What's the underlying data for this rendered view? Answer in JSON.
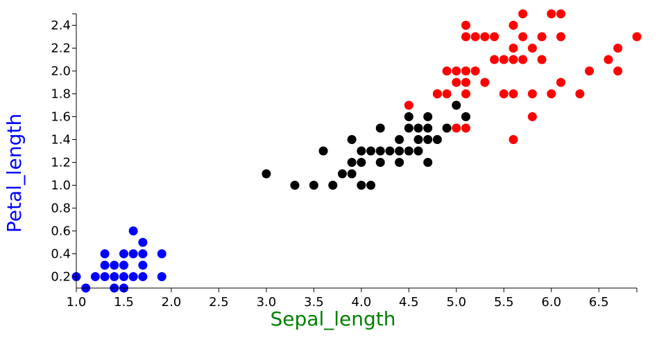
{
  "colors": {
    "setosa": "#0000ff",
    "versicolor": "#000000",
    "virginica": "#ff0000",
    "xlabel": "#008000",
    "ylabel": "#0000ff",
    "axis": "#000000"
  },
  "chart_data": {
    "type": "scatter",
    "title": "",
    "xlabel": "Sepal_length",
    "ylabel": "Petal_length",
    "xlim": [
      1.0,
      6.9
    ],
    "ylim": [
      0.1,
      2.5
    ],
    "grid": false,
    "legend": "none",
    "x_ticks": [
      "1.0",
      "1.5",
      "2.0",
      "2.5",
      "3.0",
      "3.5",
      "4.0",
      "4.5",
      "5.0",
      "5.5",
      "6.0",
      "6.5"
    ],
    "y_ticks": [
      "0.2",
      "0.4",
      "0.6",
      "0.8",
      "1.0",
      "1.2",
      "1.4",
      "1.6",
      "1.8",
      "2.0",
      "2.2",
      "2.4"
    ],
    "series": [
      {
        "color_key": "setosa",
        "points": [
          [
            1.0,
            0.2
          ],
          [
            1.1,
            0.1
          ],
          [
            1.2,
            0.2
          ],
          [
            1.3,
            0.2
          ],
          [
            1.3,
            0.3
          ],
          [
            1.3,
            0.4
          ],
          [
            1.4,
            0.1
          ],
          [
            1.4,
            0.2
          ],
          [
            1.4,
            0.3
          ],
          [
            1.5,
            0.1
          ],
          [
            1.5,
            0.2
          ],
          [
            1.5,
            0.3
          ],
          [
            1.5,
            0.4
          ],
          [
            1.6,
            0.2
          ],
          [
            1.6,
            0.4
          ],
          [
            1.6,
            0.6
          ],
          [
            1.7,
            0.2
          ],
          [
            1.7,
            0.3
          ],
          [
            1.7,
            0.4
          ],
          [
            1.7,
            0.5
          ],
          [
            1.9,
            0.2
          ],
          [
            1.9,
            0.4
          ]
        ]
      },
      {
        "color_key": "versicolor",
        "points": [
          [
            3.0,
            1.1
          ],
          [
            3.3,
            1.0
          ],
          [
            3.5,
            1.0
          ],
          [
            3.6,
            1.3
          ],
          [
            3.7,
            1.0
          ],
          [
            3.8,
            1.1
          ],
          [
            3.9,
            1.1
          ],
          [
            3.9,
            1.2
          ],
          [
            3.9,
            1.4
          ],
          [
            4.0,
            1.0
          ],
          [
            4.0,
            1.2
          ],
          [
            4.0,
            1.3
          ],
          [
            4.1,
            1.0
          ],
          [
            4.1,
            1.3
          ],
          [
            4.2,
            1.2
          ],
          [
            4.2,
            1.3
          ],
          [
            4.2,
            1.5
          ],
          [
            4.3,
            1.3
          ],
          [
            4.4,
            1.2
          ],
          [
            4.4,
            1.3
          ],
          [
            4.4,
            1.4
          ],
          [
            4.5,
            1.3
          ],
          [
            4.5,
            1.5
          ],
          [
            4.5,
            1.6
          ],
          [
            4.6,
            1.3
          ],
          [
            4.6,
            1.4
          ],
          [
            4.6,
            1.5
          ],
          [
            4.7,
            1.2
          ],
          [
            4.7,
            1.4
          ],
          [
            4.7,
            1.5
          ],
          [
            4.7,
            1.6
          ],
          [
            4.8,
            1.4
          ],
          [
            4.8,
            1.8
          ],
          [
            4.9,
            1.5
          ],
          [
            5.0,
            1.7
          ],
          [
            5.1,
            1.6
          ]
        ]
      },
      {
        "color_key": "virginica",
        "points": [
          [
            4.5,
            1.7
          ],
          [
            4.8,
            1.8
          ],
          [
            4.9,
            1.8
          ],
          [
            4.9,
            2.0
          ],
          [
            5.0,
            1.5
          ],
          [
            5.0,
            1.9
          ],
          [
            5.0,
            2.0
          ],
          [
            5.1,
            1.5
          ],
          [
            5.1,
            1.8
          ],
          [
            5.1,
            1.9
          ],
          [
            5.1,
            2.0
          ],
          [
            5.1,
            2.3
          ],
          [
            5.1,
            2.4
          ],
          [
            5.2,
            2.0
          ],
          [
            5.2,
            2.3
          ],
          [
            5.3,
            1.9
          ],
          [
            5.3,
            2.3
          ],
          [
            5.4,
            2.1
          ],
          [
            5.4,
            2.3
          ],
          [
            5.5,
            1.8
          ],
          [
            5.5,
            2.1
          ],
          [
            5.6,
            1.4
          ],
          [
            5.6,
            1.8
          ],
          [
            5.6,
            2.1
          ],
          [
            5.6,
            2.2
          ],
          [
            5.6,
            2.4
          ],
          [
            5.7,
            2.1
          ],
          [
            5.7,
            2.3
          ],
          [
            5.7,
            2.5
          ],
          [
            5.8,
            1.6
          ],
          [
            5.8,
            1.8
          ],
          [
            5.8,
            2.2
          ],
          [
            5.9,
            2.1
          ],
          [
            5.9,
            2.3
          ],
          [
            6.0,
            1.8
          ],
          [
            6.0,
            2.5
          ],
          [
            6.1,
            1.9
          ],
          [
            6.1,
            2.3
          ],
          [
            6.1,
            2.5
          ],
          [
            6.3,
            1.8
          ],
          [
            6.4,
            2.0
          ],
          [
            6.6,
            2.1
          ],
          [
            6.7,
            2.0
          ],
          [
            6.7,
            2.2
          ],
          [
            6.9,
            2.3
          ]
        ]
      }
    ]
  }
}
